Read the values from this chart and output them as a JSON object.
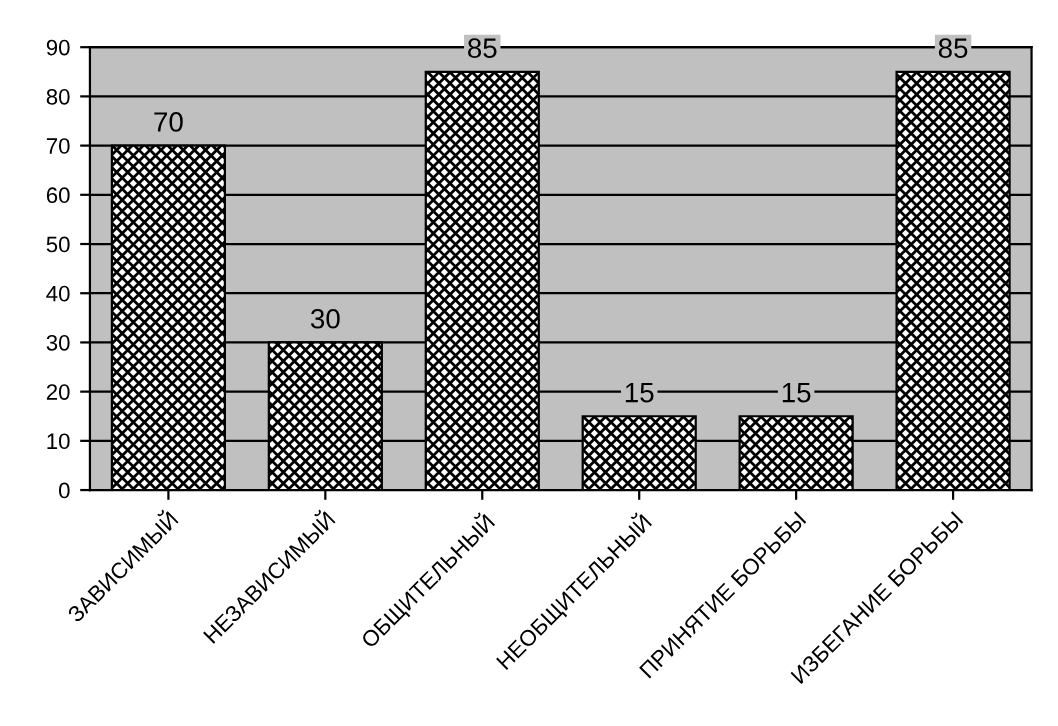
{
  "chart_data": {
    "type": "bar",
    "categories": [
      "ЗАВИСИМЫЙ",
      "НЕЗАВИСИМЫЙ",
      "ОБЩИТЕЛЬНЫЙ",
      "НЕОБЩИТЕЛЬНЫЙ",
      "ПРИНЯТИЕ БОРЬБЫ",
      "ИЗБЕГАНИЕ БОРЬБЫ"
    ],
    "values": [
      70,
      30,
      85,
      15,
      15,
      85
    ],
    "color": "#000000",
    "ylim": [
      0,
      90
    ],
    "yticks": [
      0,
      10,
      20,
      30,
      40,
      50,
      60,
      70,
      80,
      90
    ],
    "grid": "y",
    "legend": false,
    "data_labels": true
  }
}
